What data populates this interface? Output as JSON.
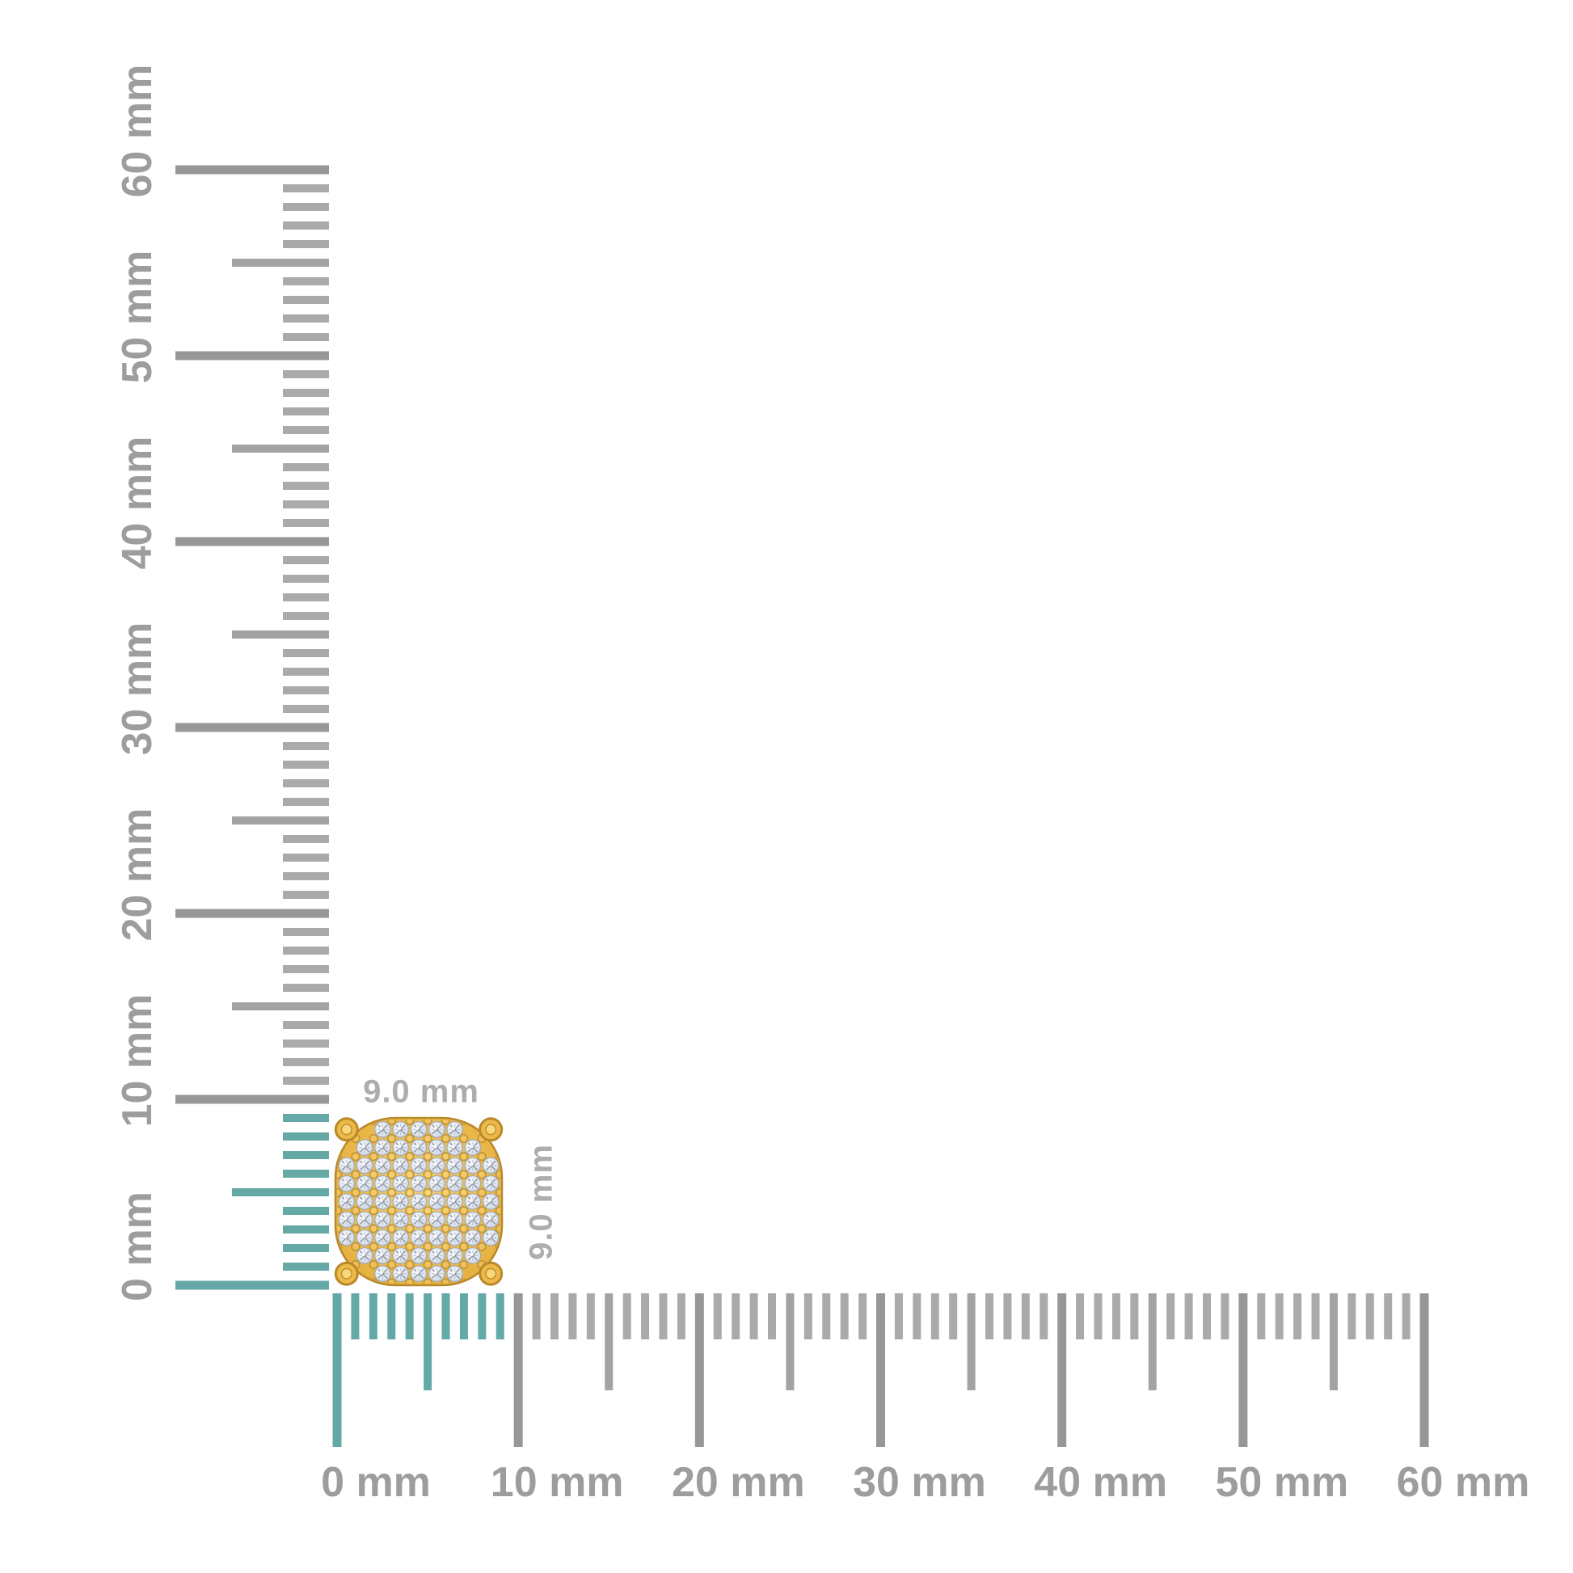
{
  "rulers": {
    "unit": "mm",
    "range_mm": [
      0,
      60
    ],
    "minor_step_mm": 1,
    "medium_step_mm": 5,
    "major_step_mm": 10,
    "highlight_extent_mm": 9,
    "vertical_labels": [
      "0 mm",
      "10 mm",
      "20 mm",
      "30 mm",
      "40 mm",
      "50 mm",
      "60 mm"
    ],
    "horizontal_labels": [
      "0 mm",
      "10 mm",
      "20 mm",
      "30 mm",
      "40 mm",
      "50 mm",
      "60 mm"
    ],
    "colors": {
      "tick_major": "#979797",
      "tick_medium": "#a3a3a3",
      "tick_minor": "#aaaaaa",
      "highlight": "#64a9a6",
      "label": "#9d9d9d"
    }
  },
  "product": {
    "width_label": "9.0 mm",
    "height_label": "9.0 mm",
    "width_mm": 9.0,
    "height_mm": 9.0,
    "diamond_rows": [
      5,
      7,
      9,
      9,
      9,
      9,
      9,
      7,
      5
    ],
    "colors": {
      "gold_light": "#f6d172",
      "gold": "#eab94a",
      "gold_deep": "#dfa93c",
      "gold_outline": "#b9892a",
      "bead_outline": "#c3922e",
      "prong_fill": "#ecba4a",
      "prong_inner": "#f7d87e",
      "diamond_light": "#ffffff",
      "diamond": "#e4e9f1",
      "diamond_deep": "#c7d0dc",
      "diamond_edge": "#9fa9b8",
      "facet": "#7f8a9b",
      "size_label": "#adadad"
    }
  }
}
